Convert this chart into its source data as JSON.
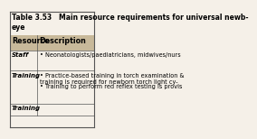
{
  "title": "Table 3.53   Main resource requirements for universal newb-\neye",
  "header": [
    "Resource",
    "Description"
  ],
  "rows": [
    {
      "resource": "Staff",
      "bullets": [
        "Neonatologists/paediatricians, midwives/nurs"
      ]
    },
    {
      "resource": "Training",
      "bullets": [
        "Practice-based training in torch examination &\ntraining is required for newborn torch light cy-",
        "Training to perform red reflex testing is provis"
      ]
    },
    {
      "resource": "Training",
      "bullets": []
    }
  ],
  "col_split": 0.32,
  "bg_color": "#f5f0e8",
  "header_bg": "#c8b99a",
  "border_color": "#555555",
  "title_fontsize": 5.5,
  "header_fontsize": 5.8,
  "cell_fontsize": 5.0
}
